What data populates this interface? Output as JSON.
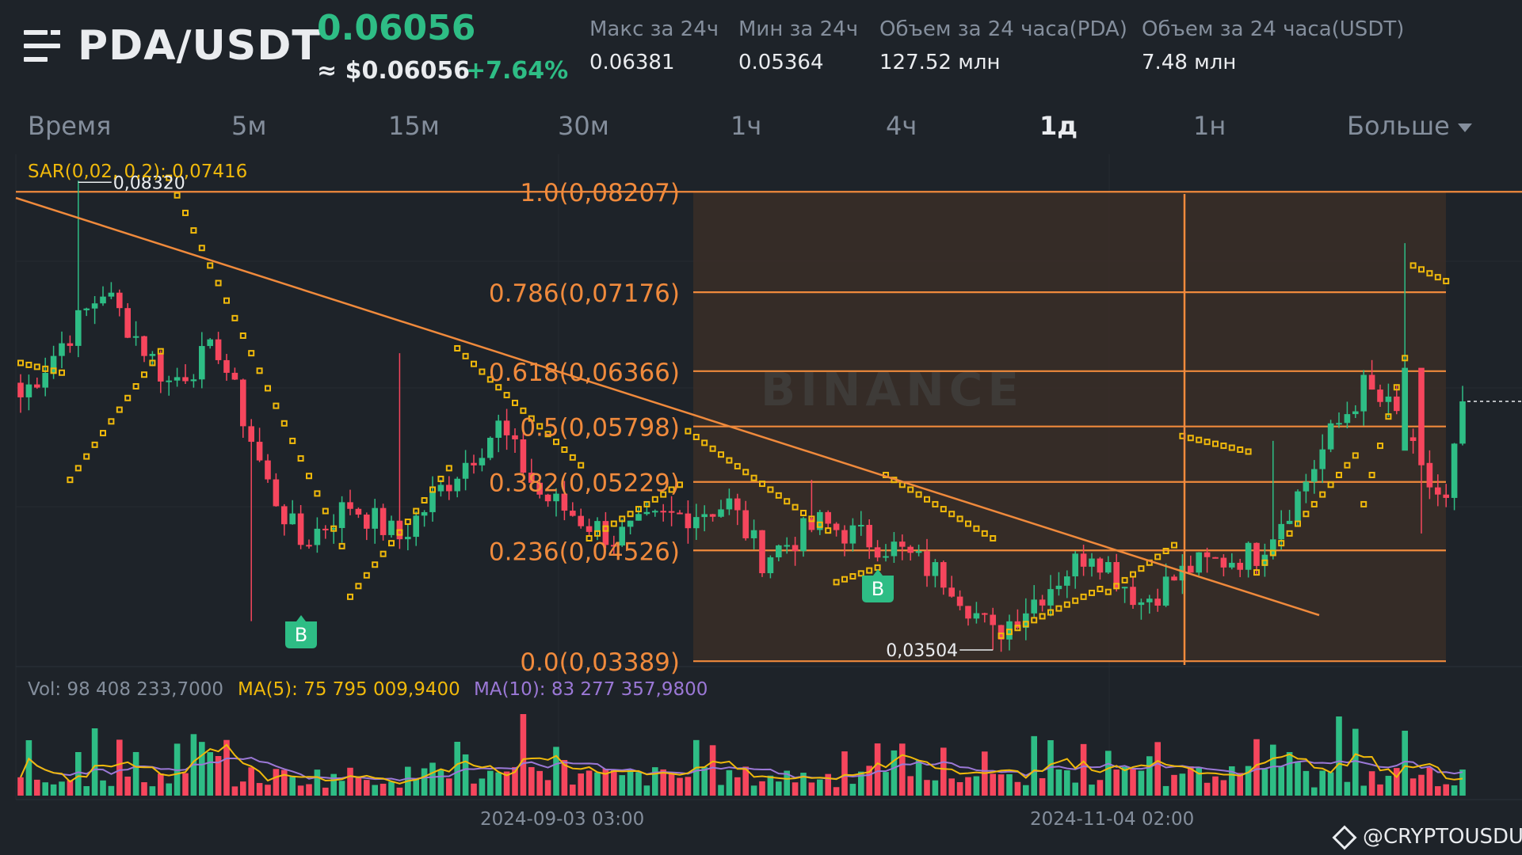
{
  "header": {
    "menu_icon": "menu-icon",
    "pair": "PDA/USDT",
    "price": "0.06056",
    "price_usd": "≈ $0.06056",
    "change": "+7.64%",
    "stats": [
      {
        "label": "Макс за 24ч",
        "value": "0.06381"
      },
      {
        "label": "Мин за 24ч",
        "value": "0.05364"
      },
      {
        "label": "Объем за 24 часа(PDA)",
        "value": "127.52 млн"
      },
      {
        "label": "Объем за 24 часа(USDT)",
        "value": "7.48 млн"
      }
    ]
  },
  "tabs": [
    {
      "label": "Время",
      "active": false
    },
    {
      "label": "5м",
      "active": false
    },
    {
      "label": "15м",
      "active": false
    },
    {
      "label": "30м",
      "active": false
    },
    {
      "label": "1ч",
      "active": false
    },
    {
      "label": "4ч",
      "active": false
    },
    {
      "label": "1д",
      "active": true
    },
    {
      "label": "1н",
      "active": false
    },
    {
      "label": "Больше",
      "active": false
    }
  ],
  "colors": {
    "background": "#1e2329",
    "up": "#2ebd85",
    "down": "#f6465d",
    "orange": "#f08a3c",
    "sar": "#f0b90b",
    "ma5": "#f0b90b",
    "ma10": "#9b78d6",
    "muted": "#848e9c"
  },
  "indicators": {
    "sar_label": "SAR(0,02, 0,2): 0,07416",
    "vol_label": "Vol: 98 408 233,7000",
    "ma5_label": "MA(5): 75 795 009,9400",
    "ma10_label": "MA(10): 83 277 357,9800"
  },
  "annotations": {
    "high_label": "0,08320",
    "low_label": "0,03504",
    "buy_marker": "B",
    "chart_watermark": "BINANCE"
  },
  "fibonacci": [
    {
      "label": "1.0(0,08207)",
      "price": 0.08207
    },
    {
      "label": "0.786(0,07176)",
      "price": 0.07176
    },
    {
      "label": "0.618(0,06366)",
      "price": 0.06366
    },
    {
      "label": "0.5(0,05798)",
      "price": 0.05798
    },
    {
      "label": "0.382(0,05229)",
      "price": 0.05229
    },
    {
      "label": "0.236(0,04526)",
      "price": 0.04526
    },
    {
      "label": "0.0(0,03389)",
      "price": 0.03389
    }
  ],
  "x_axis": {
    "date_labels": [
      "2024-09-03 03:00",
      "2024-11-04 02:00"
    ]
  },
  "footer": {
    "watermark": "@CRYPTOUSDUA"
  },
  "chart_data": {
    "type": "candlestick",
    "interval": "1д",
    "price_axis_range": [
      0.0335,
      0.0855
    ],
    "anchors": [
      {
        "index": 0,
        "close": 0.061
      },
      {
        "index": 10,
        "close": 0.072
      },
      {
        "index": 18,
        "close": 0.0625
      },
      {
        "index": 24,
        "close": 0.066
      },
      {
        "index": 30,
        "close": 0.052
      },
      {
        "index": 34,
        "close": 0.046
      },
      {
        "index": 40,
        "close": 0.05
      },
      {
        "index": 46,
        "close": 0.0465
      },
      {
        "index": 53,
        "close": 0.0535
      },
      {
        "index": 58,
        "close": 0.058
      },
      {
        "index": 63,
        "close": 0.051
      },
      {
        "index": 72,
        "close": 0.0465
      },
      {
        "index": 78,
        "close": 0.0485
      },
      {
        "index": 86,
        "close": 0.05
      },
      {
        "index": 90,
        "close": 0.0445
      },
      {
        "index": 97,
        "close": 0.048
      },
      {
        "index": 106,
        "close": 0.0455
      },
      {
        "index": 113,
        "close": 0.042
      },
      {
        "index": 118,
        "close": 0.0365
      },
      {
        "index": 124,
        "close": 0.041
      },
      {
        "index": 130,
        "close": 0.0455
      },
      {
        "index": 136,
        "close": 0.04
      },
      {
        "index": 142,
        "close": 0.0435
      },
      {
        "index": 150,
        "close": 0.045
      },
      {
        "index": 155,
        "close": 0.051
      },
      {
        "index": 159,
        "close": 0.057
      },
      {
        "index": 163,
        "close": 0.062
      },
      {
        "index": 167,
        "close": 0.059
      },
      {
        "index": 170,
        "close": 0.053
      },
      {
        "index": 173,
        "close": 0.05
      },
      {
        "index": 175,
        "close": 0.0606
      }
    ],
    "candle_count": 176,
    "period_high": 0.0832,
    "period_low": 0.03504,
    "last_price": 0.06056
  }
}
